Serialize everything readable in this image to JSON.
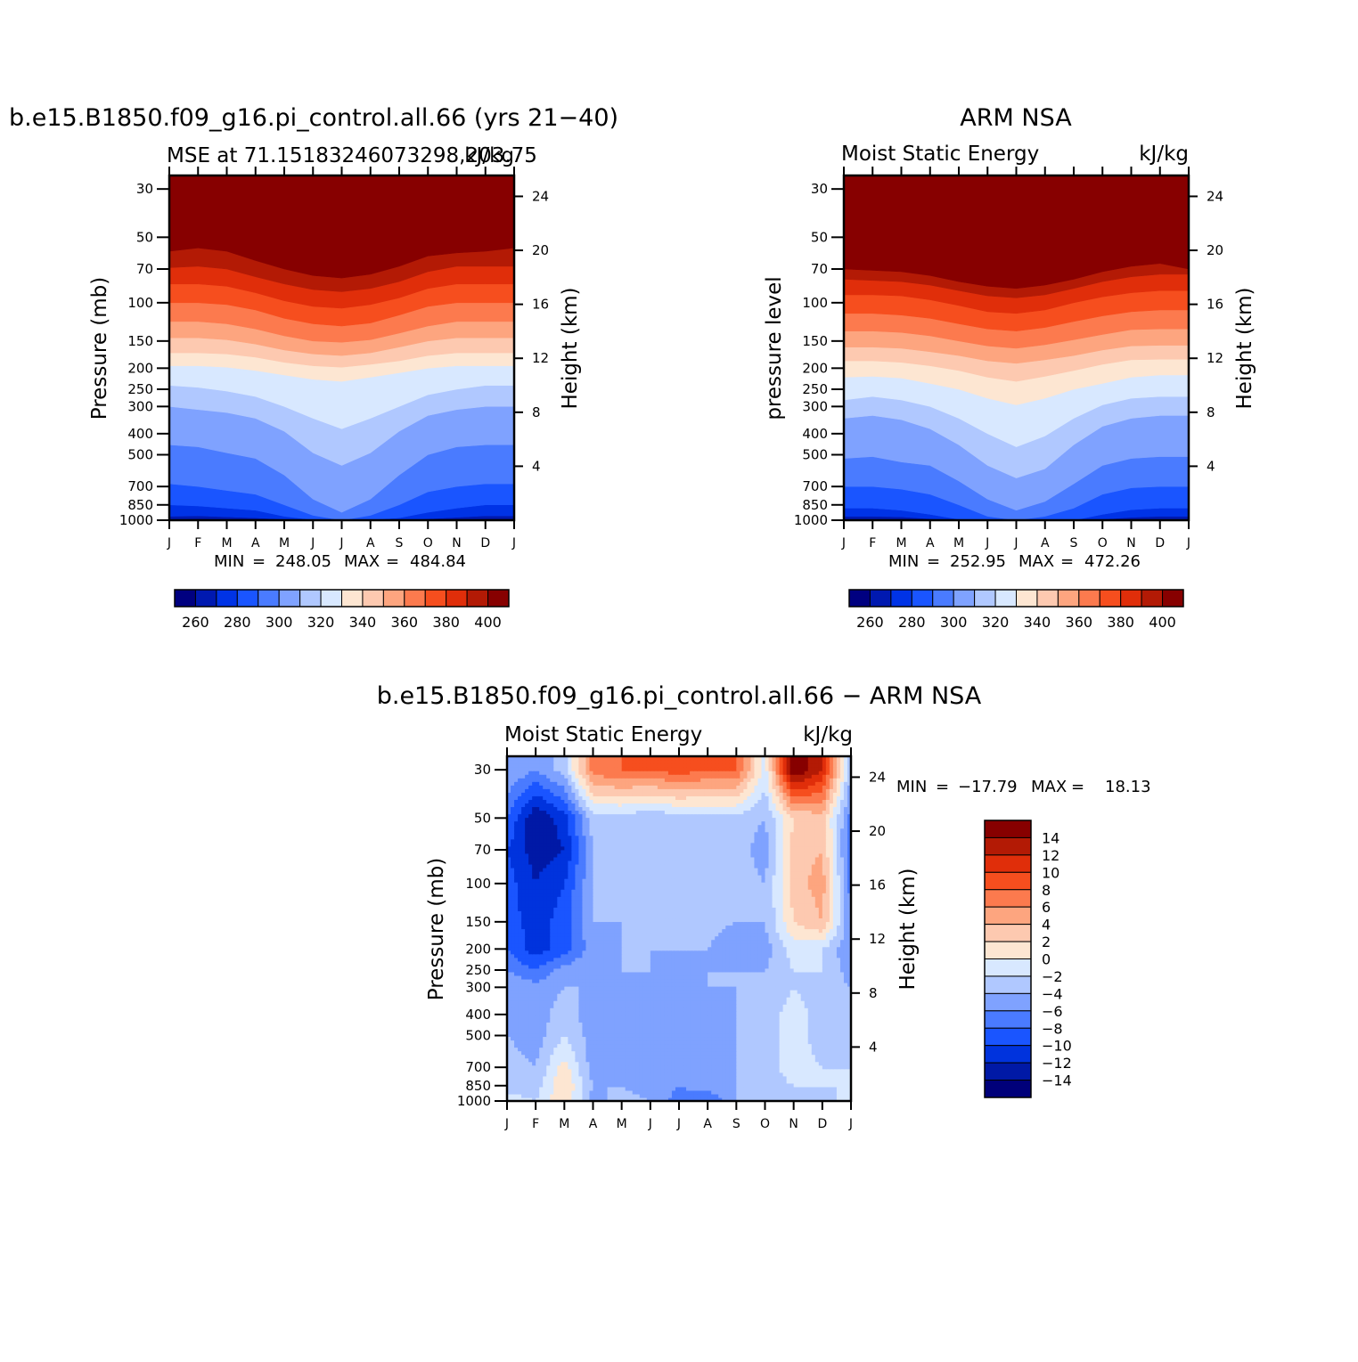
{
  "palette": {
    "mse_colors": [
      "#000080",
      "#0019b0",
      "#0033e6",
      "#1a55ff",
      "#4a7bff",
      "#7fa2ff",
      "#b0c8ff",
      "#d8e8ff",
      "#fde6d2",
      "#fdc9b0",
      "#fda57f",
      "#fc7a4e",
      "#f64e1e",
      "#e02e0a",
      "#b31a05",
      "#870000"
    ],
    "diff_colors": [
      "#00007a",
      "#0019a6",
      "#0033dd",
      "#1a55ff",
      "#4a7bff",
      "#7fa2ff",
      "#b0c8ff",
      "#d8e8ff",
      "#fde6d2",
      "#fdc9b0",
      "#fda57f",
      "#fc7a4e",
      "#f64e1e",
      "#e02e0a",
      "#b31a05",
      "#870000"
    ]
  },
  "chart_data": [
    {
      "type": "heatmap",
      "title": "b.e15.B1850.f09_g16.pi_control.all.66 (yrs 21−40)",
      "subtitle_left": "MSE at 71.15183246073298,203.75",
      "subtitle_right": "kJ/kg",
      "ylabel": "Pressure (mb)",
      "ylabel_right": "Height (km)",
      "x_ticks": [
        "J",
        "F",
        "M",
        "A",
        "M",
        "J",
        "J",
        "A",
        "S",
        "O",
        "N",
        "D",
        "J"
      ],
      "y_ticks": [
        30,
        50,
        70,
        100,
        150,
        200,
        250,
        300,
        400,
        500,
        700,
        850,
        1000
      ],
      "y_right_ticks": [
        24,
        20,
        16,
        12,
        8,
        4
      ],
      "ylim": [
        1000,
        26
      ],
      "stats": {
        "min_label": "MIN",
        "min_value": "248.05",
        "max_label": "MAX",
        "max_value": "484.84"
      },
      "colorbar_labels": [
        "260",
        "280",
        "300",
        "320",
        "340",
        "360",
        "380",
        "400"
      ],
      "contour_levels": [
        255,
        260,
        270,
        280,
        290,
        300,
        310,
        320,
        330,
        340,
        350,
        360,
        370,
        380,
        390,
        400
      ],
      "boundaries_pressure_mb": [
        [
          990,
          985,
          990,
          995,
          1000,
          1000,
          1000,
          1000,
          1000,
          1000,
          995,
          985,
          985
        ],
        [
          960,
          955,
          965,
          975,
          990,
          1000,
          1000,
          1000,
          1000,
          985,
          970,
          955,
          955
        ],
        [
          850,
          860,
          880,
          900,
          960,
          995,
          1000,
          995,
          975,
          920,
          880,
          850,
          850
        ],
        [
          680,
          700,
          730,
          760,
          850,
          950,
          1000,
          950,
          850,
          740,
          700,
          680,
          680
        ],
        [
          450,
          460,
          490,
          520,
          620,
          800,
          920,
          800,
          620,
          500,
          460,
          450,
          450
        ],
        [
          300,
          310,
          320,
          340,
          390,
          490,
          560,
          490,
          390,
          330,
          310,
          300,
          300
        ],
        [
          240,
          245,
          255,
          270,
          300,
          340,
          380,
          340,
          300,
          265,
          250,
          240,
          240
        ],
        [
          195,
          195,
          198,
          205,
          215,
          225,
          230,
          220,
          210,
          200,
          195,
          195,
          195
        ],
        [
          170,
          170,
          172,
          178,
          188,
          195,
          198,
          192,
          185,
          175,
          170,
          170,
          170
        ],
        [
          145,
          145,
          148,
          155,
          165,
          172,
          175,
          170,
          160,
          150,
          145,
          145,
          145
        ],
        [
          122,
          122,
          125,
          132,
          142,
          150,
          152,
          148,
          138,
          128,
          122,
          122,
          122
        ],
        [
          100,
          100,
          102,
          108,
          118,
          125,
          128,
          124,
          114,
          104,
          100,
          100,
          100
        ],
        [
          82,
          82,
          84,
          90,
          98,
          104,
          106,
          102,
          95,
          86,
          82,
          82,
          82
        ],
        [
          69,
          68,
          70,
          76,
          82,
          87,
          89,
          86,
          80,
          72,
          68,
          68,
          68
        ],
        [
          58,
          56,
          58,
          64,
          70,
          75,
          77,
          74,
          68,
          61,
          59,
          58,
          56
        ]
      ]
    },
    {
      "type": "heatmap",
      "title": "ARM NSA",
      "subtitle_left": "Moist Static Energy",
      "subtitle_right": "kJ/kg",
      "ylabel": "pressure level",
      "ylabel_right": "Height (km)",
      "x_ticks": [
        "J",
        "F",
        "M",
        "A",
        "M",
        "J",
        "J",
        "A",
        "S",
        "O",
        "N",
        "D",
        "J"
      ],
      "y_ticks": [
        30,
        50,
        70,
        100,
        150,
        200,
        250,
        300,
        400,
        500,
        700,
        850,
        1000
      ],
      "y_right_ticks": [
        24,
        20,
        16,
        12,
        8,
        4
      ],
      "ylim": [
        1000,
        26
      ],
      "stats": {
        "min_label": "MIN",
        "min_value": "252.95",
        "max_label": "MAX",
        "max_value": "472.26"
      },
      "colorbar_labels": [
        "260",
        "280",
        "300",
        "320",
        "340",
        "360",
        "380",
        "400"
      ],
      "contour_levels": [
        255,
        260,
        270,
        280,
        290,
        300,
        310,
        320,
        330,
        340,
        350,
        360,
        370,
        380,
        390,
        400
      ],
      "boundaries_pressure_mb": [
        [
          995,
          990,
          995,
          1000,
          1000,
          1000,
          1000,
          1000,
          1000,
          1000,
          995,
          990,
          990
        ],
        [
          960,
          960,
          965,
          985,
          1000,
          1000,
          1000,
          1000,
          1000,
          990,
          970,
          960,
          960
        ],
        [
          880,
          880,
          900,
          940,
          990,
          1000,
          1000,
          1000,
          1000,
          940,
          895,
          880,
          880
        ],
        [
          700,
          700,
          720,
          760,
          850,
          960,
          1000,
          960,
          880,
          760,
          710,
          700,
          700
        ],
        [
          520,
          510,
          540,
          560,
          660,
          800,
          900,
          820,
          680,
          560,
          520,
          510,
          510
        ],
        [
          340,
          330,
          345,
          380,
          450,
          560,
          640,
          580,
          450,
          370,
          340,
          330,
          330
        ],
        [
          280,
          270,
          280,
          300,
          340,
          400,
          460,
          410,
          340,
          295,
          275,
          270,
          270
        ],
        [
          220,
          218,
          222,
          235,
          250,
          275,
          295,
          275,
          250,
          235,
          220,
          215,
          215
        ],
        [
          185,
          185,
          188,
          195,
          205,
          220,
          230,
          218,
          205,
          192,
          183,
          182,
          182
        ],
        [
          160,
          160,
          162,
          168,
          175,
          185,
          190,
          183,
          175,
          165,
          158,
          157,
          157
        ],
        [
          135,
          135,
          137,
          142,
          150,
          158,
          162,
          156,
          148,
          140,
          133,
          132,
          132
        ],
        [
          112,
          112,
          114,
          118,
          125,
          132,
          135,
          130,
          122,
          115,
          110,
          108,
          108
        ],
        [
          92,
          92,
          93,
          97,
          103,
          110,
          112,
          108,
          100,
          94,
          90,
          88,
          88
        ],
        [
          78,
          79,
          80,
          83,
          88,
          93,
          95,
          92,
          86,
          80,
          76,
          74,
          74
        ],
        [
          70,
          71,
          72,
          75,
          80,
          84,
          86,
          83,
          78,
          72,
          68,
          66,
          70
        ]
      ]
    },
    {
      "type": "heatmap",
      "title": "b.e15.B1850.f09_g16.pi_control.all.66 − ARM NSA",
      "subtitle_left": "Moist Static Energy",
      "subtitle_right": "kJ/kg",
      "ylabel": "Pressure (mb)",
      "ylabel_right": "Height (km)",
      "x_ticks": [
        "J",
        "F",
        "M",
        "A",
        "M",
        "J",
        "J",
        "A",
        "S",
        "O",
        "N",
        "D",
        "J"
      ],
      "y_ticks": [
        30,
        50,
        70,
        100,
        150,
        200,
        250,
        300,
        400,
        500,
        700,
        850,
        1000
      ],
      "y_right_ticks": [
        24,
        20,
        16,
        12,
        8,
        4
      ],
      "ylim": [
        1000,
        26
      ],
      "stats": {
        "min_label": "MIN",
        "min_value": "−17.79",
        "max_label": "MAX",
        "max_value": "18.13"
      },
      "colorbar_labels": [
        "14",
        "12",
        "10",
        "8",
        "6",
        "4",
        "2",
        "0",
        "−2",
        "−4",
        "−6",
        "−8",
        "−10",
        "−12",
        "−14"
      ],
      "contour_levels": [
        -14,
        -12,
        -10,
        -8,
        -6,
        -4,
        -2,
        0,
        2,
        4,
        6,
        8,
        10,
        12,
        14
      ],
      "pressure_levels_mb": [
        1000,
        850,
        700,
        500,
        400,
        300,
        250,
        200,
        150,
        100,
        70,
        50,
        30
      ],
      "values": [
        [
          -1,
          -2,
          2,
          -5,
          -3,
          -4,
          -7,
          -8,
          -4,
          -4,
          -3,
          -3,
          -1
        ],
        [
          -3,
          -3,
          2,
          -4,
          -4,
          -5,
          -6,
          -5,
          -4,
          -3,
          -2,
          -2,
          -2
        ],
        [
          -3,
          -4,
          1,
          -5,
          -5,
          -5,
          -5,
          -6,
          -4,
          -3,
          -1,
          -2,
          -2
        ],
        [
          -4,
          -5,
          -2,
          -5,
          -6,
          -6,
          -4,
          -5,
          -4,
          -3,
          -1,
          -3,
          -3
        ],
        [
          -4,
          -5,
          -3,
          -5,
          -6,
          -5,
          -4,
          -6,
          -4,
          -3,
          -1,
          -3,
          -3
        ],
        [
          -4,
          -5,
          -4,
          -4,
          -5,
          -4,
          -5,
          -4,
          -4,
          -4,
          -2,
          -3,
          -4
        ],
        [
          -6,
          -8,
          -5,
          -4,
          -4,
          -4,
          -5,
          -4,
          -4,
          -4,
          -2,
          -2,
          -5
        ],
        [
          -8,
          -11,
          -9,
          -5,
          -4,
          -4,
          -4,
          -4,
          -6,
          -5,
          -1,
          -2,
          -6
        ],
        [
          -9,
          -11,
          -9,
          -4,
          -4,
          -3,
          -2,
          -3,
          -4,
          -4,
          2,
          4,
          -6
        ],
        [
          -9,
          -12,
          -10,
          -4,
          -4,
          -3,
          -3,
          -2,
          -3,
          -4,
          3,
          5,
          -7
        ],
        [
          -10,
          -13,
          -12,
          -4,
          -4,
          -4,
          -4,
          -3,
          -3,
          -5,
          3,
          4,
          -8
        ],
        [
          -8,
          -14,
          -11,
          -3,
          -3,
          -4,
          -3,
          -3,
          -3,
          -4,
          2,
          3,
          -7
        ],
        [
          -4,
          -6,
          -3,
          7,
          8,
          8,
          9,
          8,
          8,
          -1,
          16,
          12,
          -4
        ]
      ]
    }
  ]
}
